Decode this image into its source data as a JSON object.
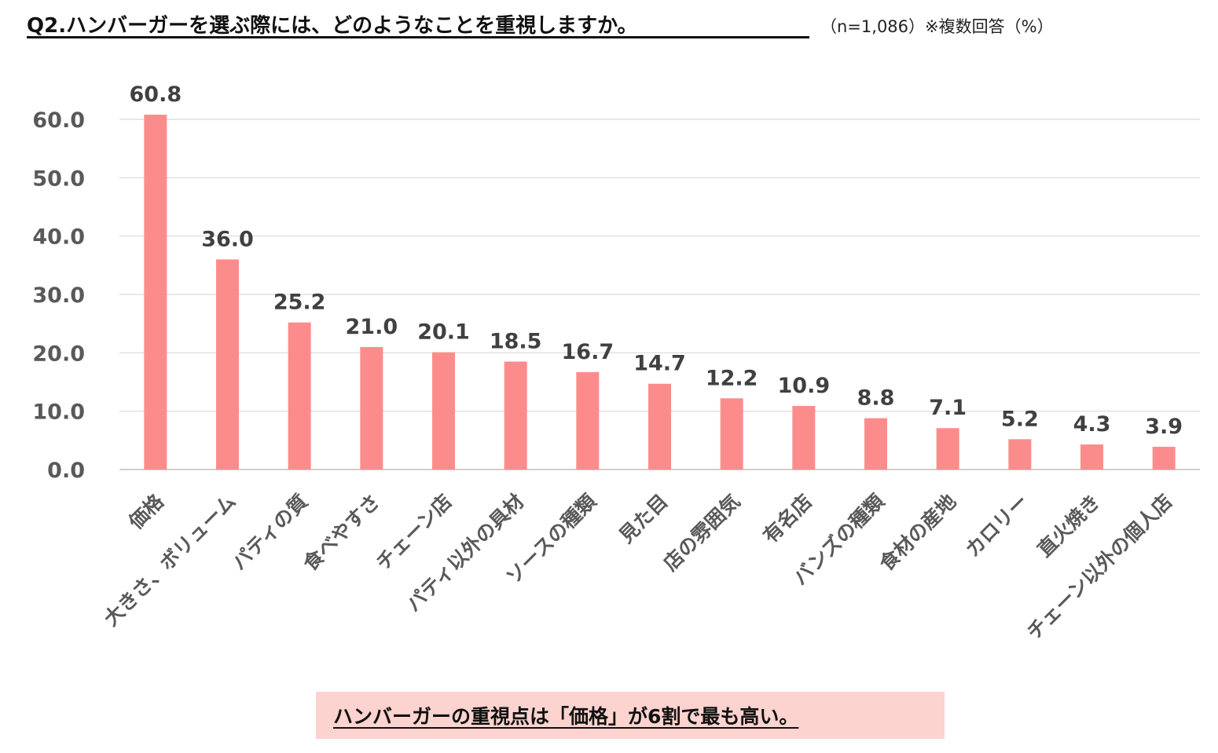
{
  "header": {
    "title": "Q2.ハンバーガーを選ぶ際には、どのようなことを重視しますか。",
    "subtitle": "（n=1,086）※複数回答（%）"
  },
  "conclusion": {
    "text": "ハンバーガーの重視点は「価格」が6割で最も高い。"
  },
  "chart_data": {
    "type": "bar",
    "categories": [
      "価格",
      "大きさ、ボリューム",
      "パティの質",
      "食べやすさ",
      "チェーン店",
      "パティ以外の具材",
      "ソースの種類",
      "見た目",
      "店の雰囲気",
      "有名店",
      "バンズの種類",
      "食材の産地",
      "カロリー",
      "直火焼き",
      "チェーン以外の個人店"
    ],
    "values": [
      60.8,
      36.0,
      25.2,
      21.0,
      20.1,
      18.5,
      16.7,
      14.7,
      12.2,
      10.9,
      8.8,
      7.1,
      5.2,
      4.3,
      3.9
    ],
    "value_labels": [
      "60.8",
      "36.0",
      "25.2",
      "21.0",
      "20.1",
      "18.5",
      "16.7",
      "14.7",
      "12.2",
      "10.9",
      "8.8",
      "7.1",
      "5.2",
      "4.3",
      "3.9"
    ],
    "yticks": [
      "0.0",
      "10.0",
      "20.0",
      "30.0",
      "40.0",
      "50.0",
      "60.0"
    ],
    "ylim": [
      0,
      60
    ],
    "grid": true,
    "bar_color": "#fc8c8c",
    "gridline_color": "#d9d9d9",
    "tick_label_color": "#595959",
    "value_label_color": "#404040"
  }
}
